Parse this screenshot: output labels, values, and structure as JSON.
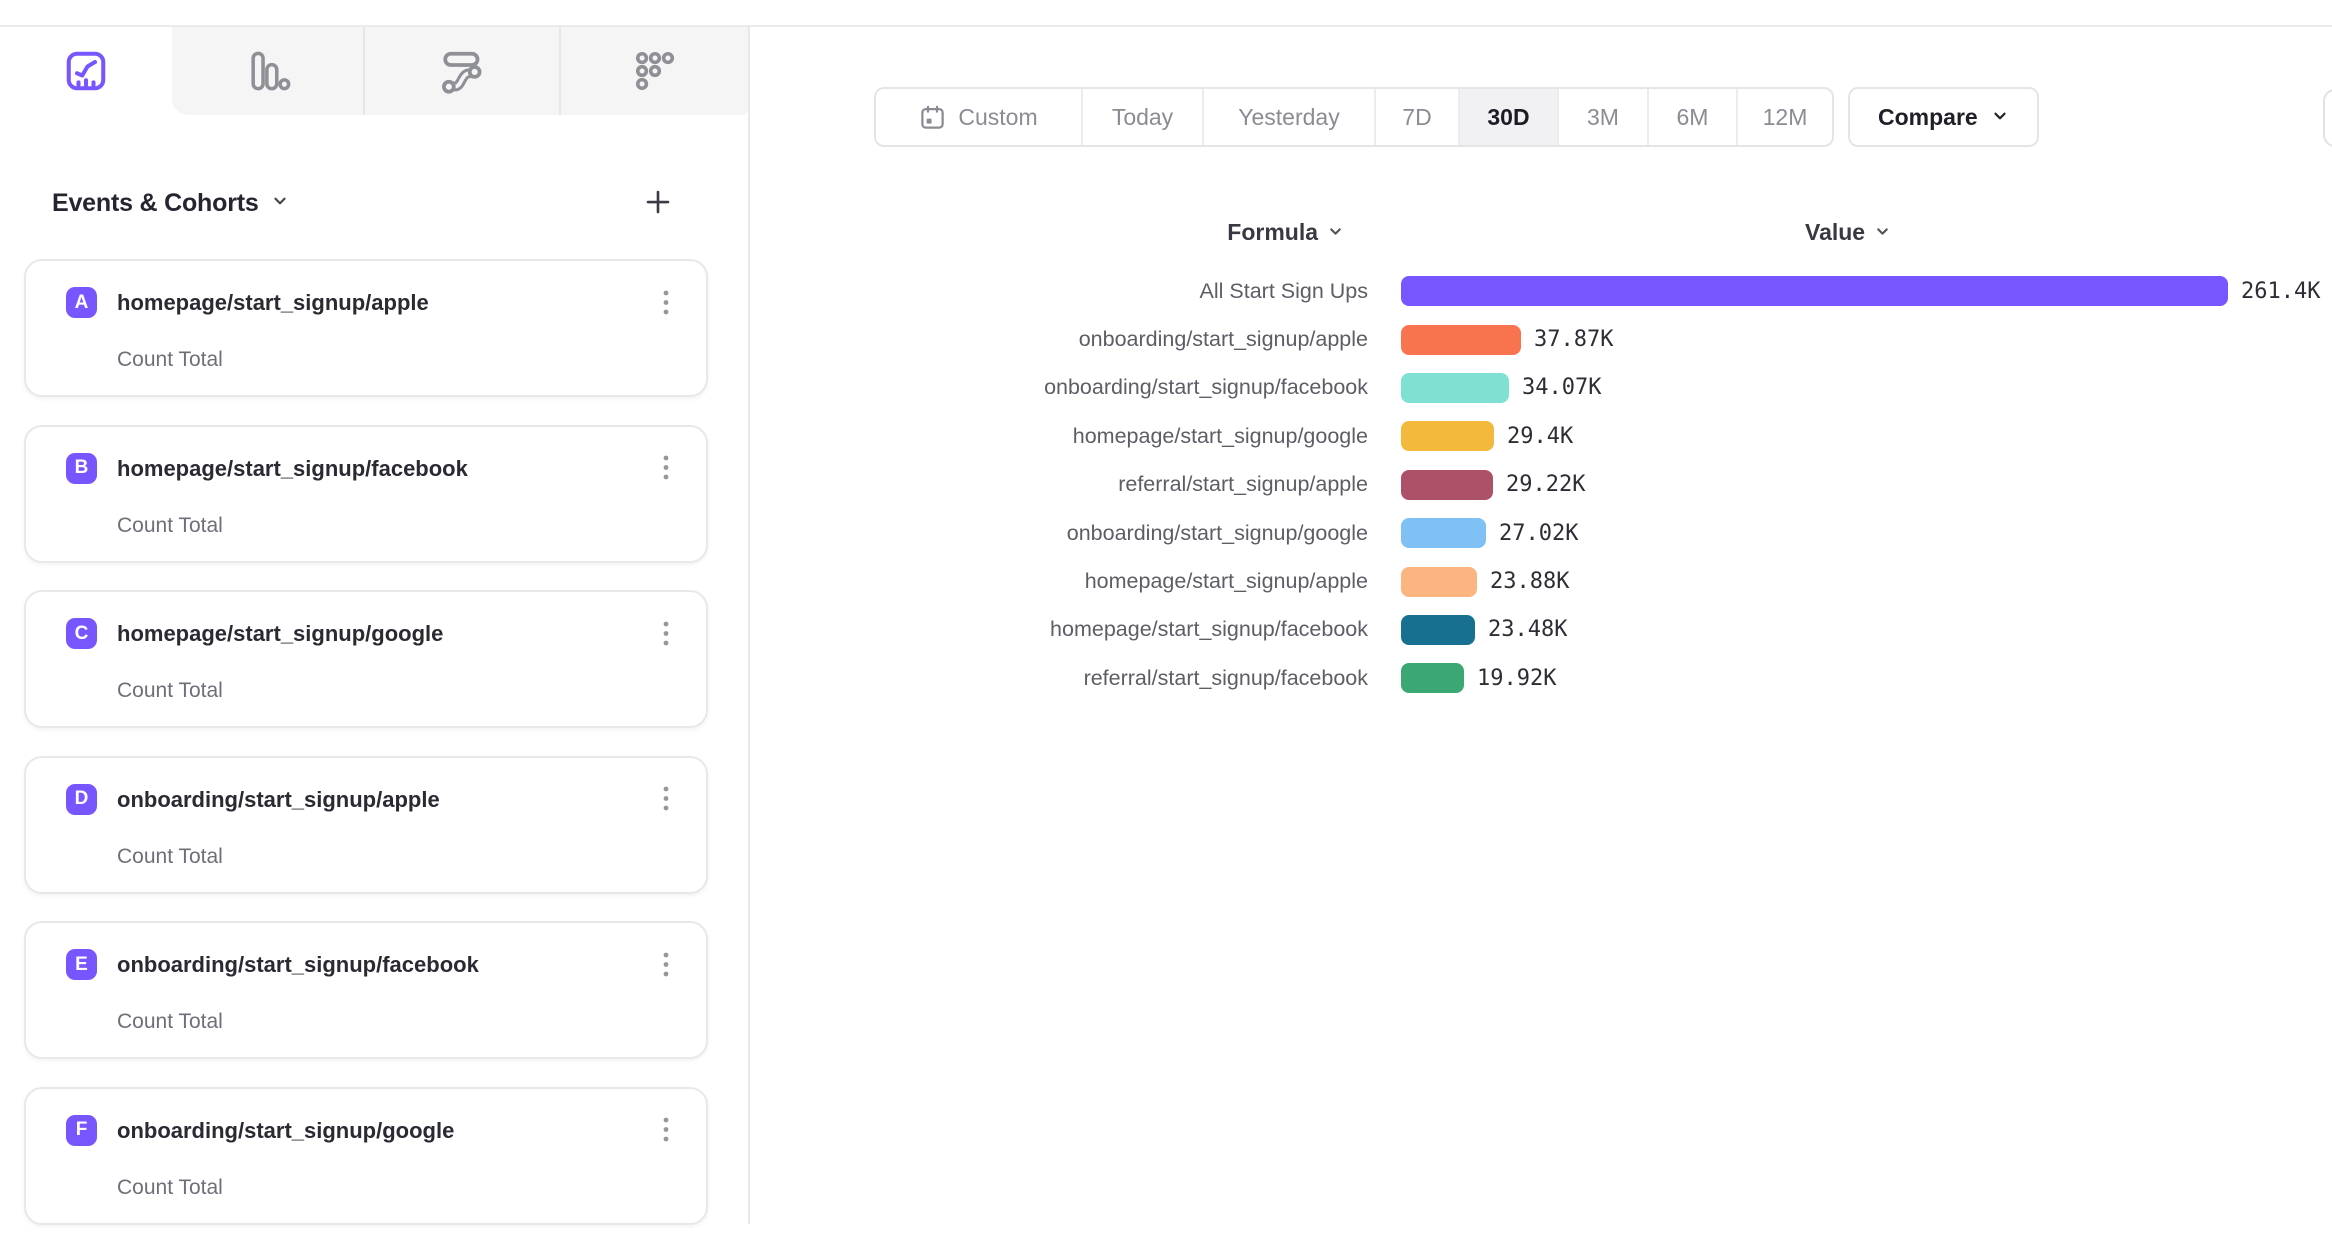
{
  "tabs": [
    {
      "id": "insights",
      "icon": "insights-chart-icon",
      "active": true
    },
    {
      "id": "bar-report",
      "icon": "bar-chart-icon",
      "active": false
    },
    {
      "id": "flows",
      "icon": "flows-icon",
      "active": false
    },
    {
      "id": "retention",
      "icon": "retention-grid-icon",
      "active": false
    }
  ],
  "sidebar": {
    "title": "Events & Cohorts",
    "badge_color": "#7856FF",
    "cards": [
      {
        "letter": "A",
        "name": "homepage/start_signup/apple",
        "measure": "Count Total"
      },
      {
        "letter": "B",
        "name": "homepage/start_signup/facebook",
        "measure": "Count Total"
      },
      {
        "letter": "C",
        "name": "homepage/start_signup/google",
        "measure": "Count Total"
      },
      {
        "letter": "D",
        "name": "onboarding/start_signup/apple",
        "measure": "Count Total"
      },
      {
        "letter": "E",
        "name": "onboarding/start_signup/facebook",
        "measure": "Count Total"
      },
      {
        "letter": "F",
        "name": "onboarding/start_signup/google",
        "measure": "Count Total"
      }
    ]
  },
  "toolbar": {
    "date_ranges": [
      "Custom",
      "Today",
      "Yesterday",
      "7D",
      "30D",
      "3M",
      "6M",
      "12M"
    ],
    "active_range": "30D",
    "compare_label": "Compare"
  },
  "chart_data": {
    "type": "bar",
    "orientation": "horizontal",
    "formula_header": "Formula",
    "value_header": "Value",
    "categories": [
      "All Start Sign Ups",
      "onboarding/start_signup/apple",
      "onboarding/start_signup/facebook",
      "homepage/start_signup/google",
      "referral/start_signup/apple",
      "onboarding/start_signup/google",
      "homepage/start_signup/apple",
      "homepage/start_signup/facebook",
      "referral/start_signup/facebook"
    ],
    "values": [
      261400,
      37870,
      34070,
      29400,
      29220,
      27020,
      23880,
      23480,
      19920
    ],
    "value_labels": [
      "261.4K",
      "37.87K",
      "34.07K",
      "29.4K",
      "29.22K",
      "27.02K",
      "23.88K",
      "23.48K",
      "19.92K"
    ],
    "colors": [
      "#7856FF",
      "#F8744F",
      "#7FE1D2",
      "#F2B93C",
      "#AC5168",
      "#7FC0F5",
      "#FCB480",
      "#17708F",
      "#3BA873"
    ],
    "xlim": [
      0,
      261400
    ],
    "grid": false,
    "legend": "none"
  }
}
